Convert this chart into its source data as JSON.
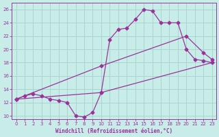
{
  "xlabel": "Windchill (Refroidissement éolien,°C)",
  "xlim": [
    -0.5,
    23.5
  ],
  "ylim": [
    9.5,
    27.0
  ],
  "yticks": [
    10,
    12,
    14,
    16,
    18,
    20,
    22,
    24,
    26
  ],
  "xticks": [
    0,
    1,
    2,
    3,
    4,
    5,
    6,
    7,
    8,
    9,
    10,
    11,
    12,
    13,
    14,
    15,
    16,
    17,
    18,
    19,
    20,
    21,
    22,
    23
  ],
  "bg_color": "#c8ece8",
  "grid_color": "#aad4ce",
  "line_color": "#993399",
  "line1_x": [
    0,
    1,
    2,
    3,
    4,
    5,
    6,
    7,
    8,
    9,
    10,
    11,
    12,
    13,
    14,
    15,
    16,
    17,
    18,
    19,
    20,
    21,
    22,
    23
  ],
  "line1_y": [
    12.5,
    13.0,
    13.3,
    13.0,
    12.5,
    12.3,
    12.0,
    10.0,
    9.8,
    10.5,
    13.5,
    21.5,
    23.0,
    23.2,
    24.5,
    26.0,
    25.8,
    24.0,
    24.0,
    24.0,
    20.0,
    18.5,
    18.3,
    18.0
  ],
  "line2_x": [
    0,
    10,
    23
  ],
  "line2_y": [
    12.5,
    13.5,
    18.0
  ],
  "line3_x": [
    0,
    10,
    20,
    22,
    23
  ],
  "line3_y": [
    12.5,
    17.5,
    22.0,
    19.5,
    18.5
  ],
  "marker": "D",
  "marker_size": 2.5,
  "lw": 0.9
}
